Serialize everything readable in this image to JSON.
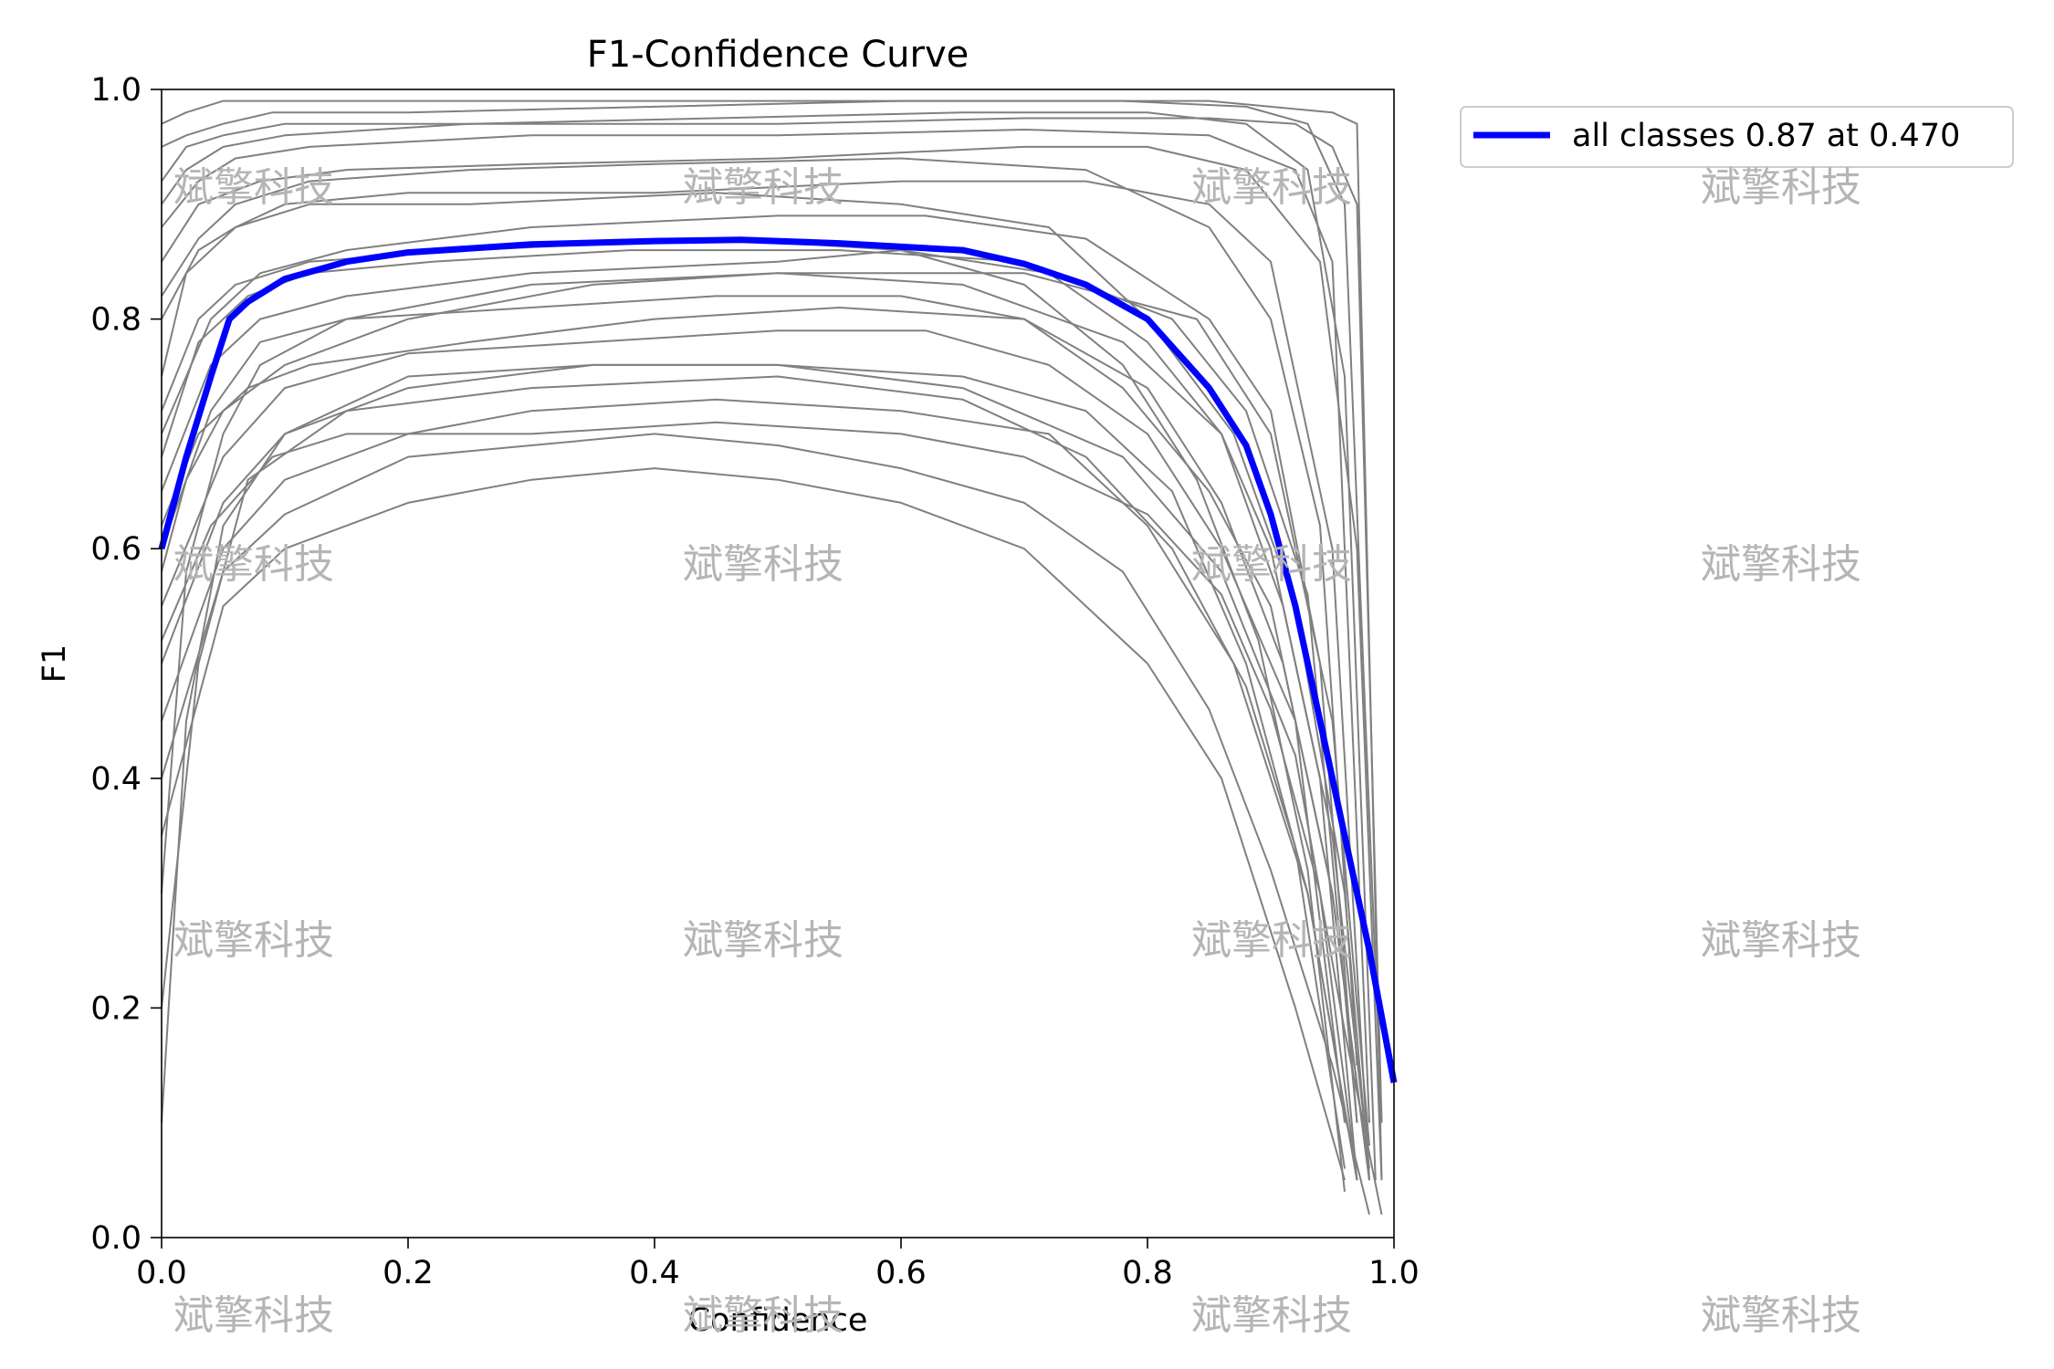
{
  "chart_data": {
    "type": "line",
    "title": "F1-Confidence Curve",
    "xlabel": "Confidence",
    "ylabel": "F1",
    "xlim": [
      0.0,
      1.0
    ],
    "ylim": [
      0.0,
      1.0
    ],
    "xticks": [
      "0.0",
      "0.2",
      "0.4",
      "0.6",
      "0.8",
      "1.0"
    ],
    "yticks": [
      "0.0",
      "0.2",
      "0.4",
      "0.6",
      "0.8",
      "1.0"
    ],
    "grid": false,
    "legend": {
      "position": "outside-top-right",
      "entries": [
        "all classes 0.87 at 0.470"
      ]
    },
    "colors": {
      "class_curves": "#808080",
      "all_classes": "#0000ff"
    },
    "series": [
      {
        "name": "all classes 0.87 at 0.470",
        "x": [
          0.0,
          0.02,
          0.04,
          0.055,
          0.07,
          0.1,
          0.15,
          0.2,
          0.3,
          0.4,
          0.47,
          0.55,
          0.65,
          0.7,
          0.75,
          0.8,
          0.85,
          0.88,
          0.9,
          0.92,
          0.94,
          0.96,
          0.98,
          1.0
        ],
        "values": [
          0.6,
          0.68,
          0.75,
          0.8,
          0.815,
          0.835,
          0.85,
          0.858,
          0.865,
          0.868,
          0.869,
          0.866,
          0.86,
          0.848,
          0.83,
          0.8,
          0.74,
          0.69,
          0.63,
          0.55,
          0.45,
          0.35,
          0.25,
          0.135
        ]
      }
    ],
    "class_curves": [
      {
        "x": [
          0.0,
          0.02,
          0.05,
          0.1,
          0.3,
          0.5,
          0.7,
          0.85,
          0.9,
          0.95,
          0.97,
          0.99
        ],
        "values": [
          0.97,
          0.98,
          0.99,
          0.99,
          0.99,
          0.99,
          0.99,
          0.99,
          0.985,
          0.98,
          0.97,
          0.05
        ]
      },
      {
        "x": [
          0.0,
          0.02,
          0.05,
          0.1,
          0.3,
          0.5,
          0.7,
          0.85,
          0.92,
          0.95,
          0.97,
          0.99
        ],
        "values": [
          0.92,
          0.95,
          0.96,
          0.97,
          0.97,
          0.97,
          0.975,
          0.975,
          0.97,
          0.95,
          0.9,
          0.1
        ]
      },
      {
        "x": [
          0.0,
          0.03,
          0.06,
          0.12,
          0.3,
          0.5,
          0.7,
          0.85,
          0.92,
          0.95,
          0.98
        ],
        "values": [
          0.88,
          0.92,
          0.94,
          0.95,
          0.96,
          0.96,
          0.965,
          0.96,
          0.93,
          0.85,
          0.1
        ]
      },
      {
        "x": [
          0.0,
          0.03,
          0.08,
          0.15,
          0.3,
          0.5,
          0.7,
          0.8,
          0.88,
          0.94,
          0.97,
          0.99
        ],
        "values": [
          0.85,
          0.9,
          0.92,
          0.93,
          0.935,
          0.94,
          0.95,
          0.95,
          0.93,
          0.85,
          0.6,
          0.05
        ]
      },
      {
        "x": [
          0.0,
          0.03,
          0.06,
          0.1,
          0.2,
          0.4,
          0.6,
          0.75,
          0.85,
          0.9,
          0.95,
          0.98
        ],
        "values": [
          0.8,
          0.86,
          0.88,
          0.9,
          0.91,
          0.91,
          0.92,
          0.92,
          0.9,
          0.85,
          0.6,
          0.05
        ]
      },
      {
        "x": [
          0.0,
          0.04,
          0.08,
          0.15,
          0.3,
          0.5,
          0.62,
          0.75,
          0.85,
          0.9,
          0.94,
          0.97
        ],
        "values": [
          0.7,
          0.8,
          0.84,
          0.86,
          0.88,
          0.89,
          0.89,
          0.87,
          0.8,
          0.72,
          0.5,
          0.1
        ]
      },
      {
        "x": [
          0.0,
          0.04,
          0.08,
          0.15,
          0.3,
          0.5,
          0.6,
          0.72,
          0.8,
          0.86,
          0.9,
          0.94,
          0.97
        ],
        "values": [
          0.65,
          0.76,
          0.8,
          0.82,
          0.84,
          0.85,
          0.86,
          0.84,
          0.78,
          0.7,
          0.6,
          0.4,
          0.05
        ]
      },
      {
        "x": [
          0.0,
          0.04,
          0.08,
          0.15,
          0.3,
          0.45,
          0.6,
          0.7,
          0.78,
          0.85,
          0.9,
          0.95,
          0.98
        ],
        "values": [
          0.6,
          0.72,
          0.78,
          0.8,
          0.81,
          0.82,
          0.82,
          0.8,
          0.74,
          0.65,
          0.55,
          0.3,
          0.05
        ]
      },
      {
        "x": [
          0.0,
          0.05,
          0.1,
          0.2,
          0.35,
          0.5,
          0.62,
          0.72,
          0.8,
          0.86,
          0.92,
          0.96
        ],
        "values": [
          0.55,
          0.68,
          0.74,
          0.77,
          0.78,
          0.79,
          0.79,
          0.76,
          0.7,
          0.6,
          0.45,
          0.1
        ]
      },
      {
        "x": [
          0.0,
          0.05,
          0.1,
          0.2,
          0.35,
          0.5,
          0.65,
          0.75,
          0.82,
          0.88,
          0.93,
          0.97
        ],
        "values": [
          0.5,
          0.64,
          0.7,
          0.74,
          0.76,
          0.76,
          0.75,
          0.72,
          0.65,
          0.5,
          0.3,
          0.05
        ]
      },
      {
        "x": [
          0.0,
          0.05,
          0.1,
          0.2,
          0.3,
          0.45,
          0.6,
          0.72,
          0.8,
          0.87,
          0.93,
          0.97
        ],
        "values": [
          0.45,
          0.6,
          0.66,
          0.7,
          0.72,
          0.73,
          0.72,
          0.7,
          0.62,
          0.5,
          0.3,
          0.05
        ]
      },
      {
        "x": [
          0.0,
          0.05,
          0.1,
          0.2,
          0.3,
          0.4,
          0.5,
          0.6,
          0.7,
          0.78,
          0.85,
          0.9,
          0.95,
          0.98
        ],
        "values": [
          0.4,
          0.58,
          0.63,
          0.68,
          0.69,
          0.7,
          0.69,
          0.67,
          0.64,
          0.58,
          0.46,
          0.32,
          0.15,
          0.02
        ]
      },
      {
        "x": [
          0.0,
          0.05,
          0.1,
          0.2,
          0.3,
          0.4,
          0.5,
          0.6,
          0.7,
          0.8,
          0.86,
          0.92,
          0.96
        ],
        "values": [
          0.35,
          0.55,
          0.6,
          0.64,
          0.66,
          0.67,
          0.66,
          0.64,
          0.6,
          0.5,
          0.4,
          0.2,
          0.05
        ]
      },
      {
        "x": [
          0.0,
          0.02,
          0.05,
          0.1,
          0.2,
          0.35,
          0.5,
          0.65,
          0.78,
          0.86,
          0.92,
          0.96,
          0.99
        ],
        "values": [
          0.1,
          0.45,
          0.62,
          0.7,
          0.75,
          0.76,
          0.76,
          0.74,
          0.68,
          0.58,
          0.42,
          0.18,
          0.02
        ]
      },
      {
        "x": [
          0.0,
          0.03,
          0.07,
          0.15,
          0.3,
          0.5,
          0.65,
          0.75,
          0.82,
          0.88,
          0.92,
          0.96
        ],
        "values": [
          0.2,
          0.5,
          0.66,
          0.72,
          0.74,
          0.75,
          0.73,
          0.68,
          0.6,
          0.48,
          0.34,
          0.06
        ]
      },
      {
        "x": [
          0.0,
          0.02,
          0.06,
          0.12,
          0.25,
          0.45,
          0.6,
          0.72,
          0.8,
          0.87,
          0.92,
          0.96,
          0.98
        ],
        "values": [
          0.75,
          0.84,
          0.88,
          0.9,
          0.9,
          0.91,
          0.9,
          0.88,
          0.8,
          0.7,
          0.55,
          0.3,
          0.05
        ]
      },
      {
        "x": [
          0.0,
          0.03,
          0.07,
          0.12,
          0.25,
          0.4,
          0.55,
          0.7,
          0.8,
          0.86,
          0.91,
          0.95,
          0.98
        ],
        "values": [
          0.62,
          0.7,
          0.74,
          0.76,
          0.78,
          0.8,
          0.81,
          0.8,
          0.74,
          0.64,
          0.5,
          0.3,
          0.05
        ]
      },
      {
        "x": [
          0.0,
          0.02,
          0.05,
          0.1,
          0.25,
          0.45,
          0.65,
          0.8,
          0.88,
          0.93,
          0.96,
          0.985
        ],
        "values": [
          0.9,
          0.93,
          0.95,
          0.96,
          0.97,
          0.975,
          0.98,
          0.98,
          0.97,
          0.93,
          0.75,
          0.05
        ]
      },
      {
        "x": [
          0.0,
          0.03,
          0.06,
          0.12,
          0.25,
          0.4,
          0.6,
          0.75,
          0.85,
          0.9,
          0.94,
          0.97
        ],
        "values": [
          0.82,
          0.87,
          0.9,
          0.92,
          0.93,
          0.935,
          0.94,
          0.93,
          0.88,
          0.8,
          0.62,
          0.15
        ]
      },
      {
        "x": [
          0.0,
          0.02,
          0.05,
          0.1,
          0.2,
          0.35,
          0.5,
          0.65,
          0.78,
          0.86,
          0.91,
          0.95,
          0.98
        ],
        "values": [
          0.58,
          0.66,
          0.72,
          0.76,
          0.8,
          0.83,
          0.84,
          0.83,
          0.78,
          0.7,
          0.55,
          0.35,
          0.06
        ]
      },
      {
        "x": [
          0.0,
          0.04,
          0.09,
          0.15,
          0.3,
          0.45,
          0.6,
          0.7,
          0.8,
          0.86,
          0.9,
          0.94,
          0.97
        ],
        "values": [
          0.52,
          0.62,
          0.68,
          0.7,
          0.7,
          0.71,
          0.7,
          0.68,
          0.63,
          0.56,
          0.46,
          0.3,
          0.05
        ]
      },
      {
        "x": [
          0.0,
          0.02,
          0.05,
          0.09,
          0.2,
          0.4,
          0.6,
          0.78,
          0.88,
          0.93,
          0.96,
          0.99
        ],
        "values": [
          0.95,
          0.96,
          0.97,
          0.98,
          0.98,
          0.985,
          0.99,
          0.99,
          0.985,
          0.97,
          0.9,
          0.1
        ]
      },
      {
        "x": [
          0.0,
          0.03,
          0.06,
          0.12,
          0.25,
          0.45,
          0.6,
          0.7,
          0.78,
          0.84,
          0.89,
          0.93,
          0.96
        ],
        "values": [
          0.72,
          0.8,
          0.83,
          0.85,
          0.86,
          0.87,
          0.86,
          0.83,
          0.76,
          0.66,
          0.52,
          0.32,
          0.04
        ]
      },
      {
        "x": [
          0.0,
          0.02,
          0.05,
          0.08,
          0.15,
          0.3,
          0.5,
          0.7,
          0.84,
          0.9,
          0.95,
          0.98
        ],
        "values": [
          0.3,
          0.58,
          0.7,
          0.76,
          0.8,
          0.83,
          0.84,
          0.84,
          0.8,
          0.7,
          0.45,
          0.08
        ]
      },
      {
        "x": [
          0.0,
          0.03,
          0.07,
          0.12,
          0.22,
          0.38,
          0.55,
          0.7,
          0.82,
          0.88,
          0.93,
          0.97
        ],
        "values": [
          0.68,
          0.78,
          0.82,
          0.84,
          0.85,
          0.86,
          0.86,
          0.85,
          0.8,
          0.72,
          0.56,
          0.1
        ]
      }
    ]
  },
  "watermark": "斌擎科技"
}
